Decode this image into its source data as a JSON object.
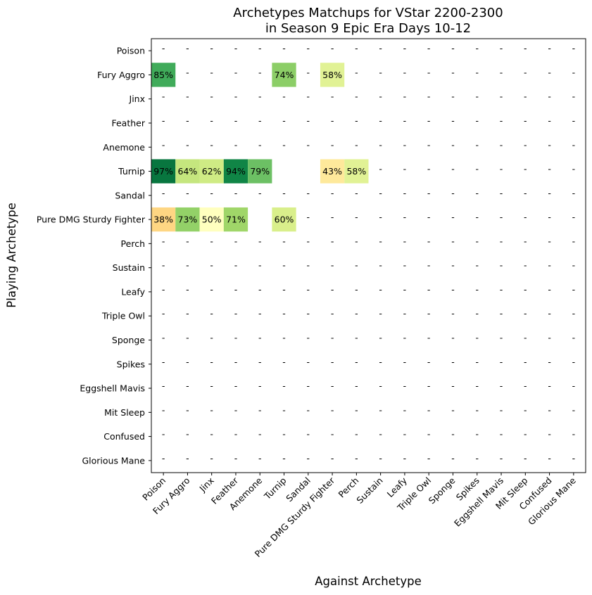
{
  "chart_data": {
    "type": "heatmap",
    "title": [
      "Archetypes Matchups for VStar 2200-2300",
      "in Season 9 Epic Era Days 10-12"
    ],
    "xlabel": "Against Archetype",
    "ylabel": "Playing Archetype",
    "rows": [
      "Poison",
      "Fury Aggro",
      "Jinx",
      "Feather",
      "Anemone",
      "Turnip",
      "Sandal",
      "Pure DMG Sturdy Fighter",
      "Perch",
      "Sustain",
      "Leafy",
      "Triple Owl",
      "Sponge",
      "Spikes",
      "Eggshell Mavis",
      "Mit Sleep",
      "Confused",
      "Glorious Mane"
    ],
    "columns": [
      "Poison",
      "Fury Aggro",
      "Jinx",
      "Feather",
      "Anemone",
      "Turnip",
      "Sandal",
      "Pure DMG Sturdy Fighter",
      "Perch",
      "Sustain",
      "Leafy",
      "Triple Owl",
      "Sponge",
      "Spikes",
      "Eggshell Mavis",
      "Mit Sleep",
      "Confused",
      "Glorious Mane"
    ],
    "missing_marker": "-",
    "value_suffix": "%",
    "colormap": "RdYlGn",
    "vmin": 0,
    "vmax": 100,
    "cells": [
      {
        "row": "Fury Aggro",
        "col": "Poison",
        "value": 85
      },
      {
        "row": "Fury Aggro",
        "col": "Turnip",
        "value": 74
      },
      {
        "row": "Fury Aggro",
        "col": "Pure DMG Sturdy Fighter",
        "value": 58
      },
      {
        "row": "Turnip",
        "col": "Poison",
        "value": 97
      },
      {
        "row": "Turnip",
        "col": "Fury Aggro",
        "value": 64
      },
      {
        "row": "Turnip",
        "col": "Jinx",
        "value": 62
      },
      {
        "row": "Turnip",
        "col": "Feather",
        "value": 94
      },
      {
        "row": "Turnip",
        "col": "Anemone",
        "value": 79
      },
      {
        "row": "Turnip",
        "col": "Pure DMG Sturdy Fighter",
        "value": 43
      },
      {
        "row": "Turnip",
        "col": "Perch",
        "value": 58
      },
      {
        "row": "Pure DMG Sturdy Fighter",
        "col": "Poison",
        "value": 38
      },
      {
        "row": "Pure DMG Sturdy Fighter",
        "col": "Fury Aggro",
        "value": 73
      },
      {
        "row": "Pure DMG Sturdy Fighter",
        "col": "Jinx",
        "value": 50
      },
      {
        "row": "Pure DMG Sturdy Fighter",
        "col": "Feather",
        "value": 71
      },
      {
        "row": "Pure DMG Sturdy Fighter",
        "col": "Turnip",
        "value": 60
      }
    ],
    "blank_cells": [
      {
        "row": "Turnip",
        "col": "Turnip"
      },
      {
        "row": "Turnip",
        "col": "Sandal"
      },
      {
        "row": "Pure DMG Sturdy Fighter",
        "col": "Anemone"
      }
    ],
    "grid": false,
    "legend": "none"
  }
}
